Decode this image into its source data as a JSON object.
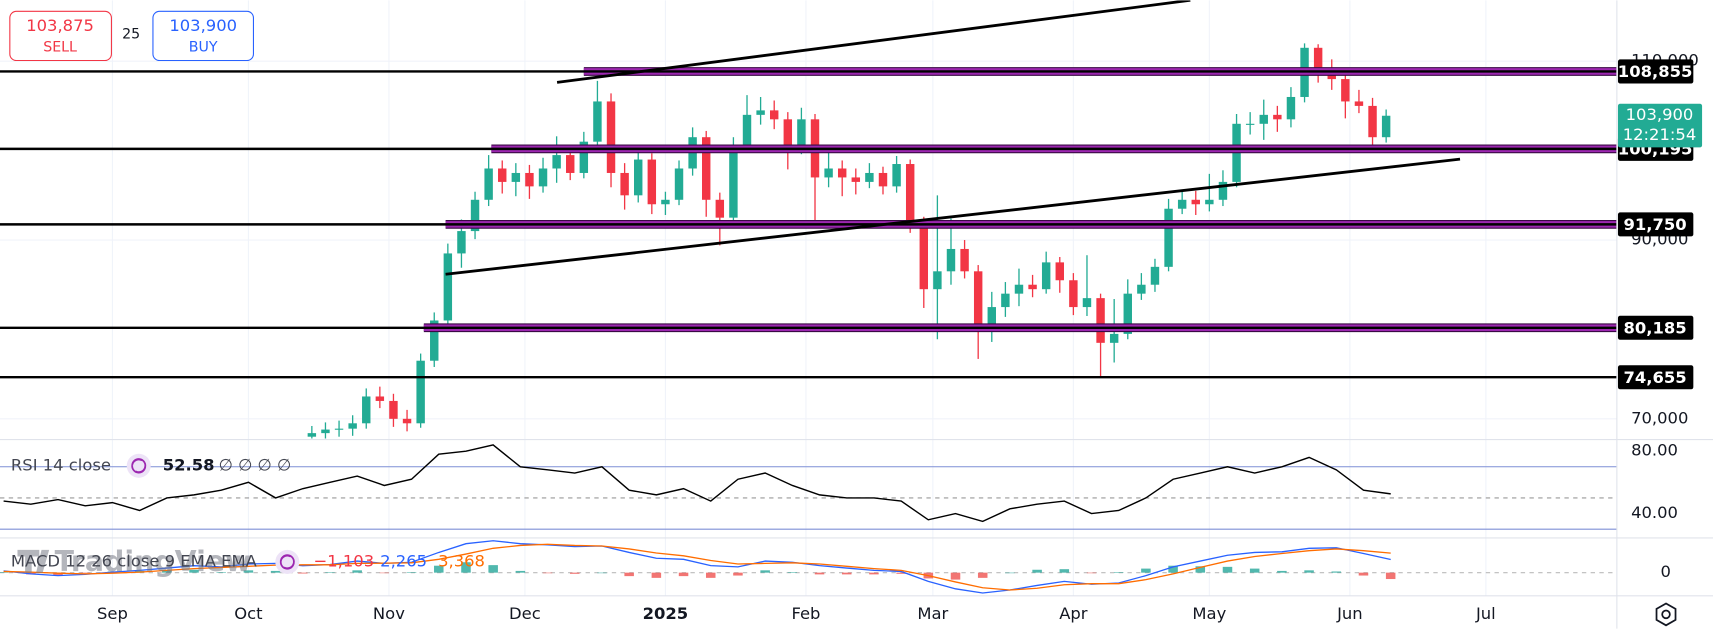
{
  "trade": {
    "sell_price": {
      "value": 103875,
      "label": "103,875"
    },
    "sell": "SELL",
    "spread": 25,
    "buy_price": {
      "value": 103900,
      "label": "103,900"
    },
    "buy": "BUY"
  },
  "watermark": "TradingView",
  "chart_data": [
    {
      "type": "candlestick",
      "x": [
        44,
        47,
        50,
        53,
        56,
        59,
        62,
        65,
        68,
        71,
        74,
        77,
        80,
        83,
        86,
        89,
        92,
        95,
        98,
        101,
        104,
        107,
        110,
        113,
        116,
        119,
        122,
        125,
        128,
        131,
        134,
        137,
        140,
        143,
        146,
        149,
        152,
        155,
        158,
        161,
        164,
        167,
        170,
        173,
        176,
        179,
        182,
        185,
        188,
        191,
        194,
        197,
        200,
        203,
        206,
        209,
        212,
        215,
        218,
        221,
        224,
        227,
        230,
        233,
        236,
        239,
        242,
        245,
        248,
        251,
        254,
        257,
        260,
        263,
        266,
        269,
        272,
        275,
        278,
        281
      ],
      "open": [
        68000,
        68400,
        68800,
        68900,
        69500,
        72500,
        72000,
        70000,
        69500,
        76500,
        81000,
        88500,
        91000,
        94500,
        98000,
        96500,
        97500,
        96000,
        98000,
        99500,
        97500,
        101000,
        105500,
        97500,
        95000,
        99000,
        94000,
        94500,
        98000,
        101500,
        94500,
        92500,
        100500,
        104000,
        104500,
        103500,
        100500,
        103500,
        97000,
        98000,
        97000,
        96500,
        97500,
        96000,
        98500,
        91500,
        84500,
        86500,
        89000,
        86500,
        80500,
        82500,
        84000,
        85000,
        84500,
        87500,
        85500,
        82500,
        83500,
        78500,
        79500,
        84000,
        85000,
        87000,
        93500,
        94500,
        94000,
        94500,
        96500,
        103000,
        103000,
        104000,
        103500,
        106000,
        111500,
        109000,
        108000,
        105500,
        105000,
        101500
      ],
      "high": [
        69200,
        69600,
        69800,
        70400,
        73400,
        73600,
        72800,
        71000,
        77300,
        81900,
        89600,
        92300,
        95400,
        99500,
        98900,
        98600,
        98400,
        99200,
        101600,
        100500,
        102100,
        107800,
        106400,
        98600,
        99900,
        99700,
        95400,
        98900,
        102600,
        102200,
        95300,
        101500,
        106200,
        106000,
        105600,
        104300,
        104800,
        104100,
        100300,
        98900,
        98000,
        98600,
        98200,
        99400,
        99000,
        92600,
        95000,
        92400,
        90000,
        87200,
        84200,
        85300,
        86800,
        86100,
        88700,
        88100,
        86300,
        88300,
        84000,
        83400,
        85600,
        86300,
        87900,
        94600,
        95600,
        95500,
        97400,
        97800,
        104100,
        104300,
        105700,
        105000,
        107100,
        112000,
        111900,
        110200,
        108600,
        106800,
        105900,
        104600
      ],
      "low": [
        67300,
        67700,
        68000,
        68100,
        68900,
        71200,
        69100,
        68600,
        69000,
        75800,
        80300,
        86900,
        90100,
        93800,
        95200,
        94900,
        94600,
        95300,
        96400,
        96700,
        96900,
        100600,
        95900,
        93400,
        94200,
        92900,
        92800,
        93900,
        97200,
        92600,
        89400,
        91800,
        99800,
        102900,
        102400,
        97900,
        99600,
        91600,
        95900,
        94900,
        95100,
        95800,
        95100,
        95300,
        90800,
        82400,
        78900,
        85000,
        85700,
        76700,
        78600,
        81400,
        82600,
        83600,
        84000,
        84100,
        81600,
        81500,
        74700,
        76300,
        78900,
        83300,
        84200,
        86500,
        92900,
        92800,
        93200,
        93800,
        95900,
        101800,
        101200,
        102100,
        102600,
        105400,
        107600,
        106800,
        103600,
        104200,
        100400,
        100900
      ],
      "close": [
        68400,
        68800,
        68900,
        69500,
        72500,
        72000,
        70000,
        69500,
        76500,
        81000,
        88500,
        91000,
        94500,
        98000,
        96500,
        97500,
        96000,
        98000,
        99500,
        97500,
        101000,
        105500,
        97500,
        95000,
        99000,
        94000,
        94500,
        98000,
        101500,
        94500,
        92500,
        100500,
        104000,
        104500,
        103500,
        100500,
        103500,
        97000,
        98000,
        97000,
        96500,
        97500,
        96000,
        98500,
        91500,
        84500,
        86500,
        89000,
        86500,
        80500,
        82500,
        84000,
        85000,
        84500,
        87500,
        85500,
        82500,
        83500,
        78500,
        79500,
        84000,
        85000,
        87000,
        93500,
        94500,
        94000,
        94500,
        96500,
        103000,
        103000,
        104000,
        103500,
        106000,
        111500,
        109000,
        108000,
        105500,
        105000,
        101500,
        103900
      ],
      "up_color": "#22ab94",
      "down_color": "#f23645",
      "xlim": [
        -24.8,
        331.9
      ],
      "ylim": [
        67800,
        116800
      ],
      "xticks": [
        {
          "value": 0,
          "label": "Sep"
        },
        {
          "value": 30,
          "label": "Oct"
        },
        {
          "value": 61,
          "label": "Nov"
        },
        {
          "value": 91,
          "label": "Dec"
        },
        {
          "value": 122,
          "label": "2025"
        },
        {
          "value": 153,
          "label": "Feb"
        },
        {
          "value": 181,
          "label": "Mar"
        },
        {
          "value": 212,
          "label": "Apr"
        },
        {
          "value": 242,
          "label": "May"
        },
        {
          "value": 273,
          "label": "Jun"
        },
        {
          "value": 303,
          "label": "Jul"
        }
      ],
      "yticks": [
        {
          "value": 70000,
          "label": "70,000"
        },
        {
          "value": 90000,
          "label": "90,000"
        },
        {
          "value": 110000,
          "label": "110,000"
        }
      ],
      "grid": true,
      "levels": [
        {
          "value": 108855,
          "label": "108,855",
          "zone_from": 104
        },
        {
          "value": 100195,
          "label": "100,195",
          "zone_from": 83.6
        },
        {
          "value": 91750,
          "label": "91,750",
          "zone_from": 73.5
        },
        {
          "value": 80185,
          "label": "80,185",
          "zone_from": 68.7
        },
        {
          "value": 74655,
          "label": "74,655",
          "zone_from": null
        }
      ],
      "zone_color": "#9c27b0",
      "trendlines": [
        {
          "x": [
            73.5,
            297.3
          ],
          "y": [
            86170,
            99050
          ]
        },
        {
          "x": [
            98.1,
            237.8
          ],
          "y": [
            107630,
            116820
          ]
        }
      ],
      "last_price": {
        "value": 103900,
        "label": "103,900"
      },
      "countdown": "12:21:54"
    },
    {
      "type": "line",
      "name": "RSI 14 close",
      "x": [
        -24,
        -18,
        -12,
        -6,
        0,
        6,
        12,
        18,
        24,
        30,
        36,
        42,
        48,
        54,
        60,
        66,
        72,
        78,
        84,
        90,
        96,
        102,
        108,
        114,
        120,
        126,
        132,
        138,
        144,
        150,
        156,
        162,
        168,
        174,
        180,
        186,
        192,
        198,
        204,
        210,
        216,
        222,
        228,
        234,
        240,
        246,
        252,
        258,
        264,
        270,
        276,
        282
      ],
      "values": [
        48,
        46,
        49,
        45,
        47,
        42,
        50,
        52,
        55,
        60,
        50,
        56,
        60,
        64,
        58,
        62,
        78,
        80,
        84,
        70,
        68,
        66,
        70,
        55,
        52,
        56,
        48,
        62,
        66,
        58,
        52,
        50,
        50,
        48,
        36,
        40,
        35,
        43,
        46,
        48,
        40,
        42,
        50,
        62,
        66,
        70,
        66,
        70,
        76,
        68,
        55,
        52.58
      ],
      "color": "#000000",
      "legend_value": 52.58,
      "legend_extra": "∅ ∅ ∅ ∅",
      "ylim": [
        24.4,
        87.4
      ],
      "yticks": [
        {
          "value": 40,
          "label": "40.00"
        },
        {
          "value": 80,
          "label": "80.00"
        }
      ],
      "bands": [
        70,
        30
      ],
      "band_color": "#7e8fd6",
      "midline": 50
    },
    {
      "type": "macd",
      "name": "MACD 12 26 close 9 EMA EMA",
      "x": [
        -24,
        -18,
        -12,
        -6,
        0,
        6,
        12,
        18,
        24,
        30,
        36,
        42,
        48,
        54,
        60,
        66,
        72,
        78,
        84,
        90,
        96,
        102,
        108,
        114,
        120,
        126,
        132,
        138,
        144,
        150,
        156,
        162,
        168,
        174,
        180,
        186,
        192,
        198,
        204,
        210,
        216,
        222,
        228,
        234,
        240,
        246,
        252,
        258,
        264,
        270,
        276,
        282
      ],
      "histogram": [
        100,
        -300,
        -400,
        -100,
        200,
        300,
        400,
        500,
        100,
        400,
        300,
        -150,
        50,
        400,
        -50,
        100,
        1200,
        1800,
        1300,
        300,
        -100,
        -200,
        0,
        -600,
        -900,
        -600,
        -900,
        -500,
        400,
        100,
        -300,
        -300,
        -300,
        -200,
        -1000,
        -1200,
        -900,
        0,
        500,
        600,
        -100,
        100,
        700,
        1200,
        1100,
        1000,
        700,
        300,
        400,
        200,
        -500,
        -1103
      ],
      "macd": [
        300,
        -200,
        -500,
        -300,
        100,
        400,
        800,
        1200,
        1000,
        1500,
        1600,
        1200,
        1400,
        2000,
        1600,
        1800,
        3500,
        5000,
        5500,
        5000,
        4800,
        4500,
        4600,
        3500,
        2500,
        2300,
        1200,
        1000,
        2000,
        1800,
        1200,
        800,
        400,
        200,
        -1500,
        -2800,
        -3500,
        -3000,
        -2200,
        -1500,
        -2000,
        -1800,
        -500,
        1000,
        2000,
        3000,
        3500,
        3600,
        4200,
        4300,
        3300,
        2265
      ],
      "signal": [
        200,
        100,
        -100,
        -200,
        -100,
        100,
        400,
        700,
        900,
        1100,
        1300,
        1350,
        1350,
        1600,
        1650,
        1700,
        2300,
        3200,
        4200,
        4700,
        4900,
        4700,
        4600,
        4100,
        3400,
        2900,
        2100,
        1500,
        1600,
        1700,
        1500,
        1100,
        700,
        400,
        -500,
        -1600,
        -2600,
        -3000,
        -2700,
        -2100,
        -1900,
        -1900,
        -1200,
        -200,
        900,
        2000,
        2800,
        3300,
        3800,
        4100,
        3800,
        3368
      ],
      "macd_color": "#2962ff",
      "signal_color": "#ff6d00",
      "hist_up_color": "#26a69a",
      "hist_down_color": "#ef5350",
      "legend_values": [
        {
          "value": -1103,
          "label": "−1,103"
        },
        {
          "value": 2265,
          "label": "2,265"
        },
        {
          "value": 3368,
          "label": "3,368"
        }
      ],
      "ylim": [
        -4000,
        6000
      ],
      "yticks": [
        0
      ]
    }
  ]
}
